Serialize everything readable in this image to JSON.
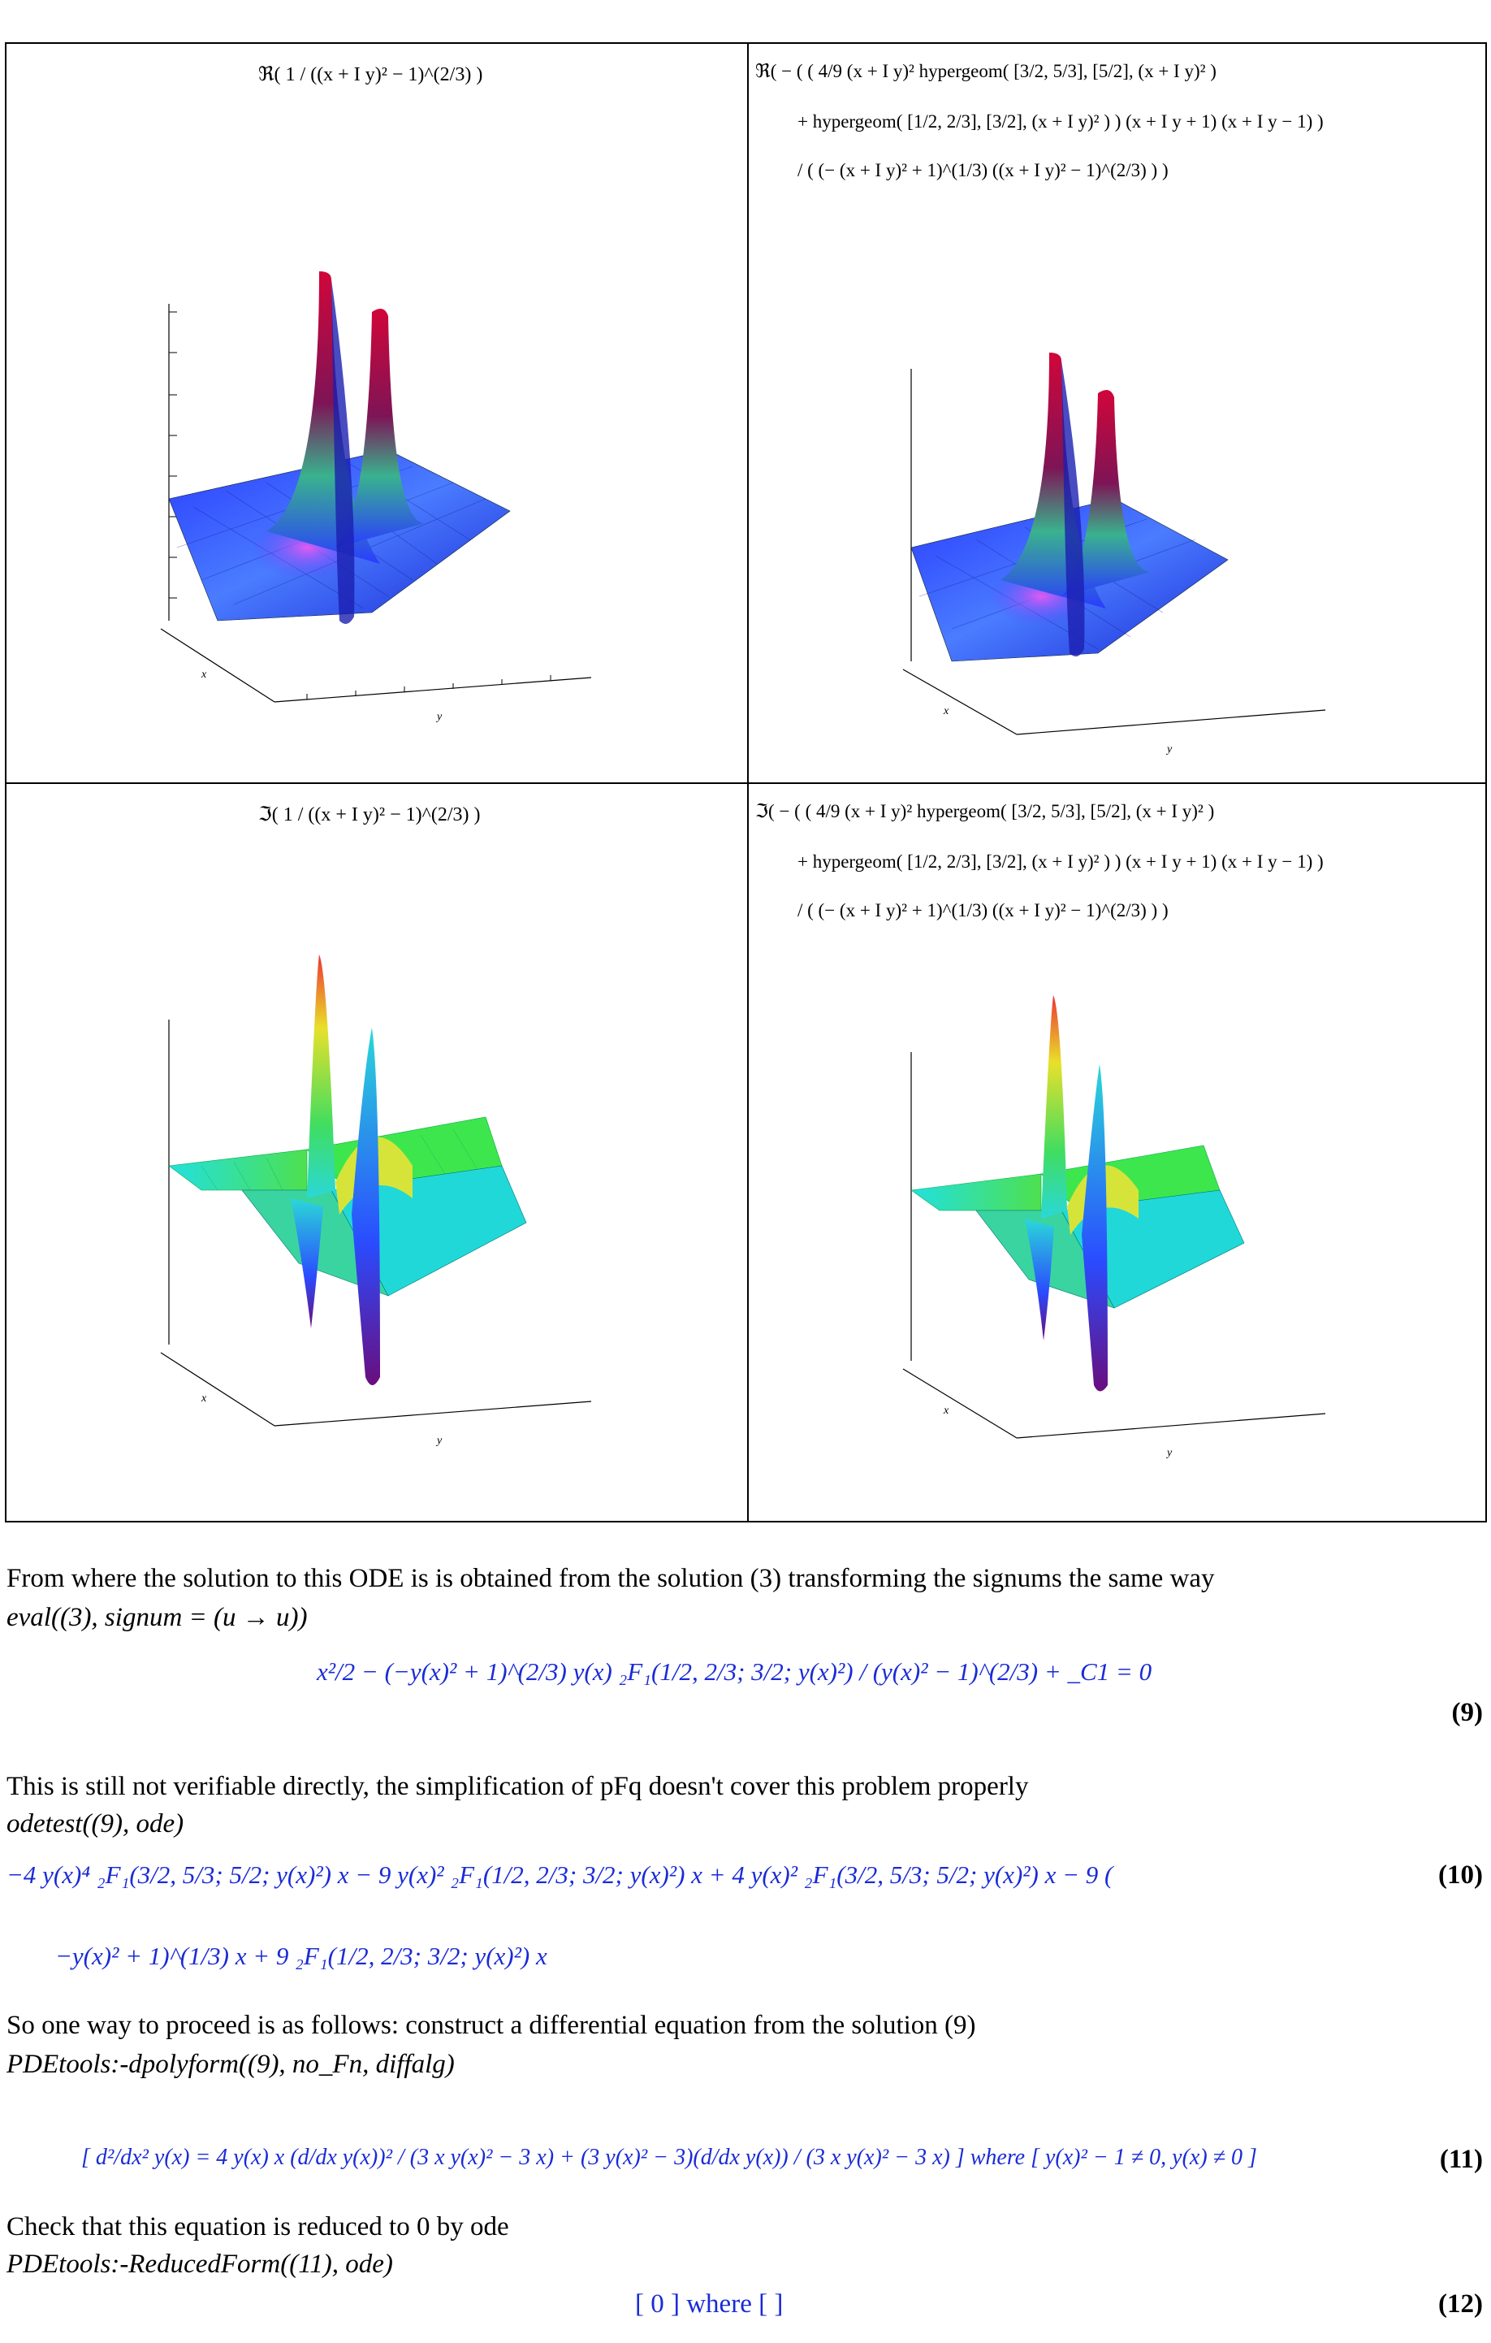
{
  "plots": [
    {
      "caption_lines": [
        "ℜ( 1 / ((x + I y)² − 1)^(2/3) )"
      ],
      "kind": "real-simple"
    },
    {
      "caption_lines": [
        "ℜ( − ( ( 4/9 (x + I y)² hypergeom( [3/2, 5/3], [5/2], (x + I y)² )",
        "+ hypergeom( [1/2, 2/3], [3/2], (x + I y)² ) ) (x + I y + 1) (x + I y − 1) )",
        "/ ( (− (x + I y)² + 1)^(1/3) ((x + I y)² − 1)^(2/3) ) )"
      ],
      "kind": "real-hyper"
    },
    {
      "caption_lines": [
        "ℑ( 1 / ((x + I y)² − 1)^(2/3) )"
      ],
      "kind": "imag-simple"
    },
    {
      "caption_lines": [
        "ℑ( − ( ( 4/9 (x + I y)² hypergeom( [3/2, 5/3], [5/2], (x + I y)² )",
        "+ hypergeom( [1/2, 2/3], [3/2], (x + I y)² ) ) (x + I y + 1) (x + I y − 1) )",
        "/ ( (− (x + I y)² + 1)^(1/3) ((x + I y)² − 1)^(2/3) ) )"
      ],
      "kind": "imag-hyper"
    }
  ],
  "axis_labels": {
    "x": "x",
    "y": "y"
  },
  "text": {
    "p1": "From where the solution to this ODE is is obtained from the solution (3) transforming the signums the same way",
    "cmd1": "eval((3), signum = (u → u))",
    "eq9": "x²/2 − (−y(x)² + 1)^(2/3) y(x) ₂F₁(1/2, 2/3; 3/2; y(x)²) / (y(x)² − 1)^(2/3) + _C1 = 0",
    "eq9_num": "(9)",
    "p2": "This is still not verifiable directly, the simplification of pFq doesn't cover this problem properly",
    "cmd2": "odetest((9), ode)",
    "eq10_line1": "−4 y(x)⁴ ₂F₁(3/2, 5/3; 5/2; y(x)²) x − 9 y(x)² ₂F₁(1/2, 2/3; 3/2; y(x)²) x + 4 y(x)² ₂F₁(3/2, 5/3; 5/2; y(x)²) x − 9 (",
    "eq10_line2": "−y(x)² + 1)^(1/3) x + 9 ₂F₁(1/2, 2/3; 3/2; y(x)²) x",
    "eq10_num": "(10)",
    "p3": "So one way to proceed is as follows: construct a differential equation from the solution (9)",
    "cmd3": "PDEtools:-dpolyform((9), no_Fn, diffalg)",
    "eq11": "[ d²/dx² y(x) = 4 y(x) x (d/dx y(x))² / (3 x y(x)² − 3 x) + (3 y(x)² − 3)(d/dx y(x)) / (3 x y(x)² − 3 x) ] where [ y(x)² − 1 ≠ 0, y(x) ≠ 0 ]",
    "eq11_num": "(11)",
    "p4": "Check that this equation is reduced to 0 by ode",
    "cmd4": "PDEtools:-ReducedForm((11), ode)",
    "eq12": "[ 0 ] where [ ]",
    "eq12_num": "(12)"
  },
  "colors": {
    "math": "#1a2bd6",
    "border": "#000000"
  }
}
